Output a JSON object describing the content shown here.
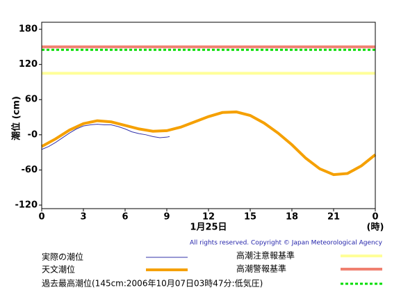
{
  "chart_data": {
    "type": "line",
    "ylabel": "潮位 (cm)",
    "xlabel": "1月25日",
    "xunit": "(時)",
    "copyright": "All rights reserved. Copyright © Japan Meteorological Agency",
    "xlim": [
      0,
      24
    ],
    "xticks": [
      0,
      3,
      6,
      9,
      12,
      15,
      18,
      21,
      {
        "value": 24,
        "label": "0"
      }
    ],
    "ylim": [
      -126,
      192
    ],
    "yticks": [
      180,
      120,
      60,
      {
        "value": 0,
        "label": "-0"
      },
      -60,
      -120
    ],
    "series": [
      {
        "name": "実際の潮位",
        "color": "#3333aa",
        "width": 1,
        "x": [
          0,
          0.5,
          1,
          1.5,
          2,
          2.5,
          3,
          3.5,
          4,
          4.5,
          5,
          5.5,
          6,
          6.5,
          7,
          7.5,
          8,
          8.5,
          9,
          9.2
        ],
        "values": [
          -25,
          -20,
          -13,
          -5,
          3,
          10,
          15,
          17,
          18,
          17,
          17,
          14,
          10,
          5,
          2,
          0,
          -3,
          -5,
          -4,
          -3
        ]
      },
      {
        "name": "天文潮位",
        "color": "#f5a000",
        "width": 4,
        "x": [
          0,
          1,
          2,
          3,
          4,
          5,
          6,
          7,
          8,
          9,
          10,
          11,
          12,
          13,
          14,
          15,
          16,
          17,
          18,
          19,
          20,
          21,
          22,
          23,
          24
        ],
        "values": [
          -20,
          -7,
          8,
          19,
          24,
          22,
          16,
          10,
          6,
          7,
          13,
          22,
          31,
          38,
          39,
          33,
          20,
          3,
          -17,
          -40,
          -58,
          -68,
          -66,
          -53,
          -34
        ]
      }
    ],
    "reference_lines": [
      {
        "name": "高潮注意報基準",
        "value": 105,
        "color": "#ffff99",
        "style": "solid"
      },
      {
        "name": "高潮警報基準",
        "value": 150,
        "color": "#f08070",
        "style": "solid"
      },
      {
        "name": "過去最高潮位(145cm:2006年10月07日03時47分:低気圧)",
        "value": 145,
        "color": "#00dd00",
        "style": "dashed"
      }
    ]
  }
}
